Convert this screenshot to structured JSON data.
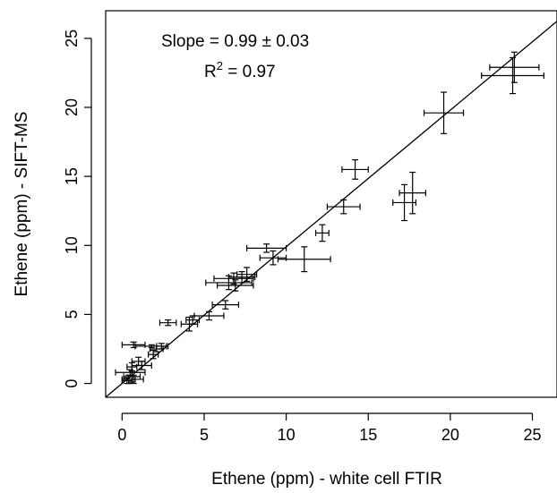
{
  "chart_data": {
    "type": "scatter",
    "xlabel": "Ethene (ppm) - white cell FTIR",
    "ylabel": "Ethene (ppm) - SIFT-MS",
    "xlim": [
      -1,
      26.5
    ],
    "ylim": [
      -1,
      27
    ],
    "xticks": [
      0,
      5,
      10,
      15,
      20,
      25
    ],
    "yticks": [
      0,
      5,
      10,
      15,
      20,
      25
    ],
    "grid": false,
    "annotations": {
      "slope_text": "Slope = 0.99 ± 0.03",
      "r2_prefix": "R",
      "r2_sup": "2",
      "r2_suffix": " = 0.97"
    },
    "fit_line": {
      "slope": 0.99,
      "intercept": 0.0
    },
    "points": [
      {
        "x": 23.9,
        "y": 22.9,
        "xerr": 1.5,
        "yerr": 1.1
      },
      {
        "x": 23.8,
        "y": 22.3,
        "xerr": 1.9,
        "yerr": 1.3
      },
      {
        "x": 19.6,
        "y": 19.6,
        "xerr": 1.2,
        "yerr": 1.5
      },
      {
        "x": 14.2,
        "y": 15.5,
        "xerr": 0.8,
        "yerr": 0.7
      },
      {
        "x": 17.7,
        "y": 13.8,
        "xerr": 0.8,
        "yerr": 1.5
      },
      {
        "x": 17.2,
        "y": 13.1,
        "xerr": 0.7,
        "yerr": 1.3
      },
      {
        "x": 13.5,
        "y": 12.8,
        "xerr": 1.0,
        "yerr": 0.5
      },
      {
        "x": 12.2,
        "y": 10.9,
        "xerr": 0.4,
        "yerr": 0.6
      },
      {
        "x": 9.2,
        "y": 9.1,
        "xerr": 0.8,
        "yerr": 0.5
      },
      {
        "x": 8.8,
        "y": 9.8,
        "xerr": 1.2,
        "yerr": 0.3
      },
      {
        "x": 11.1,
        "y": 9.0,
        "xerr": 1.6,
        "yerr": 0.9
      },
      {
        "x": 7.6,
        "y": 7.9,
        "xerr": 0.6,
        "yerr": 0.5
      },
      {
        "x": 7.3,
        "y": 7.7,
        "xerr": 0.8,
        "yerr": 0.4
      },
      {
        "x": 6.8,
        "y": 7.6,
        "xerr": 1.2,
        "yerr": 0.4
      },
      {
        "x": 6.5,
        "y": 7.3,
        "xerr": 1.4,
        "yerr": 0.5
      },
      {
        "x": 6.9,
        "y": 7.1,
        "xerr": 1.1,
        "yerr": 0.4
      },
      {
        "x": 6.3,
        "y": 5.7,
        "xerr": 0.8,
        "yerr": 0.3
      },
      {
        "x": 5.3,
        "y": 4.9,
        "xerr": 0.9,
        "yerr": 0.3
      },
      {
        "x": 4.3,
        "y": 4.6,
        "xerr": 0.4,
        "yerr": 0.3
      },
      {
        "x": 4.1,
        "y": 4.3,
        "xerr": 0.5,
        "yerr": 0.5
      },
      {
        "x": 2.8,
        "y": 4.4,
        "xerr": 0.5,
        "yerr": 0.2
      },
      {
        "x": 0.7,
        "y": 2.8,
        "xerr": 0.7,
        "yerr": 0.2
      },
      {
        "x": 2.4,
        "y": 2.7,
        "xerr": 0.3,
        "yerr": 0.2
      },
      {
        "x": 1.8,
        "y": 2.7,
        "xerr": 1.0,
        "yerr": 0.1
      },
      {
        "x": 2.1,
        "y": 2.5,
        "xerr": 0.4,
        "yerr": 0.2
      },
      {
        "x": 1.9,
        "y": 2.1,
        "xerr": 0.3,
        "yerr": 0.3
      },
      {
        "x": 1.0,
        "y": 1.6,
        "xerr": 0.4,
        "yerr": 0.3
      },
      {
        "x": 1.2,
        "y": 1.3,
        "xerr": 0.6,
        "yerr": 0.3
      },
      {
        "x": 0.6,
        "y": 1.2,
        "xerr": 0.3,
        "yerr": 0.3
      },
      {
        "x": 0.5,
        "y": 0.8,
        "xerr": 0.9,
        "yerr": 0.2
      },
      {
        "x": 0.6,
        "y": 0.5,
        "xerr": 0.5,
        "yerr": 0.4
      },
      {
        "x": 0.4,
        "y": 0.3,
        "xerr": 0.4,
        "yerr": 0.3
      },
      {
        "x": 0.7,
        "y": 0.3,
        "xerr": 0.6,
        "yerr": 0.3
      },
      {
        "x": 0.3,
        "y": 0.2,
        "xerr": 0.3,
        "yerr": 0.2
      }
    ]
  }
}
